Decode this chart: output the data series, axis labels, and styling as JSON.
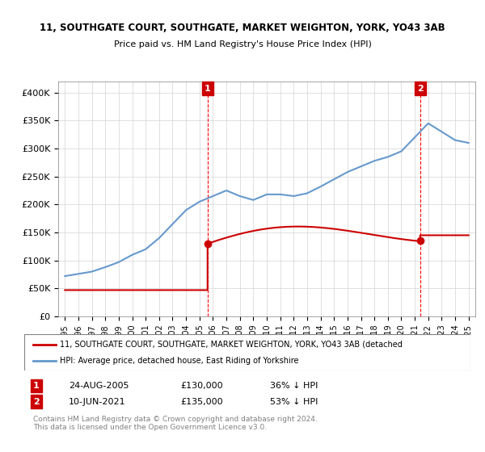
{
  "title1": "11, SOUTHGATE COURT, SOUTHGATE, MARKET WEIGHTON, YORK, YO43 3AB",
  "title2": "Price paid vs. HM Land Registry's House Price Index (HPI)",
  "legend_label1": "11, SOUTHGATE COURT, SOUTHGATE, MARKET WEIGHTON, YORK, YO43 3AB (detached",
  "legend_label2": "HPI: Average price, detached house, East Riding of Yorkshire",
  "annotation1_label": "1",
  "annotation1_date": "24-AUG-2005",
  "annotation1_price": "£130,000",
  "annotation1_hpi": "36% ↓ HPI",
  "annotation2_label": "2",
  "annotation2_date": "10-JUN-2021",
  "annotation2_price": "£135,000",
  "annotation2_hpi": "53% ↓ HPI",
  "footnote": "Contains HM Land Registry data © Crown copyright and database right 2024.\nThis data is licensed under the Open Government Licence v3.0.",
  "price_color": "#cc0000",
  "hpi_color": "#6699cc",
  "vline_color": "#ff0000",
  "annotation_box_color": "#cc0000",
  "ylim_min": 0,
  "ylim_max": 420000,
  "hpi_years": [
    1995,
    1996,
    1997,
    1998,
    1999,
    2000,
    2001,
    2002,
    2003,
    2004,
    2005,
    2006,
    2007,
    2008,
    2009,
    2010,
    2011,
    2012,
    2013,
    2014,
    2015,
    2016,
    2017,
    2018,
    2019,
    2020,
    2021,
    2022,
    2023,
    2024,
    2025
  ],
  "hpi_values": [
    72000,
    76000,
    80000,
    88000,
    97000,
    110000,
    120000,
    140000,
    165000,
    190000,
    205000,
    215000,
    225000,
    215000,
    208000,
    218000,
    218000,
    215000,
    220000,
    232000,
    245000,
    258000,
    268000,
    278000,
    285000,
    295000,
    320000,
    345000,
    330000,
    315000,
    310000
  ],
  "price_years": [
    1995.0,
    2005.6,
    2021.4
  ],
  "price_values": [
    47000,
    130000,
    135000
  ],
  "sale1_x": 2005.6,
  "sale1_y": 130000,
  "sale2_x": 2021.4,
  "sale2_y": 135000,
  "yticks": [
    0,
    50000,
    100000,
    150000,
    200000,
    250000,
    300000,
    350000,
    400000
  ],
  "ytick_labels": [
    "£0",
    "£50K",
    "£100K",
    "£150K",
    "£200K",
    "£250K",
    "£300K",
    "£350K",
    "£400K"
  ],
  "xtick_years": [
    1995,
    1996,
    1997,
    1998,
    1999,
    2000,
    2001,
    2002,
    2003,
    2004,
    2005,
    2006,
    2007,
    2008,
    2009,
    2010,
    2011,
    2012,
    2013,
    2014,
    2015,
    2016,
    2017,
    2018,
    2019,
    2020,
    2021,
    2022,
    2023,
    2024,
    2025
  ]
}
